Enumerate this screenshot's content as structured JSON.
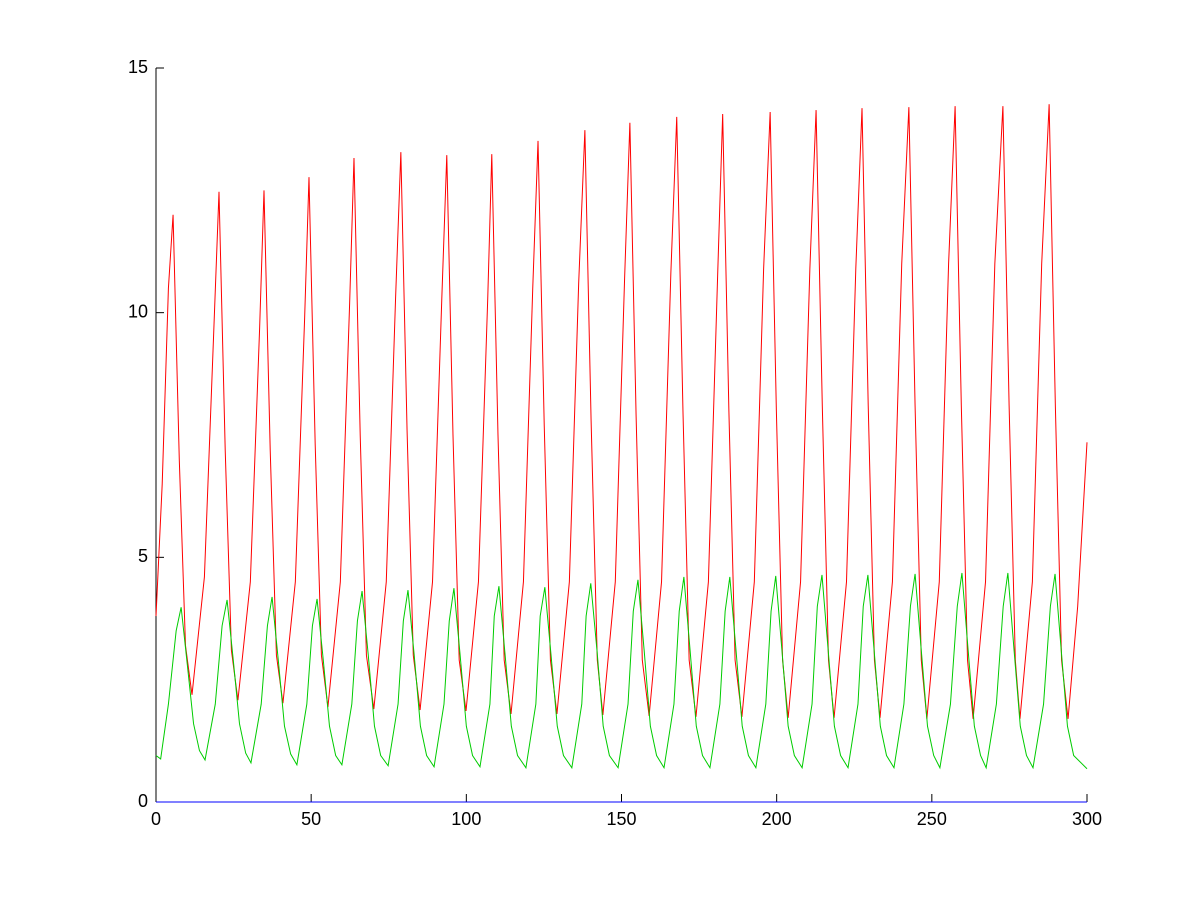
{
  "chart_data": {
    "type": "line",
    "xlim": [
      0,
      300
    ],
    "ylim": [
      0,
      15
    ],
    "xticks": [
      0,
      50,
      100,
      150,
      200,
      250,
      300
    ],
    "yticks": [
      0,
      5,
      10,
      15
    ],
    "series": [
      {
        "color": "#ff0000",
        "x": [
          0,
          2,
          4,
          5.5,
          7.5,
          9.5,
          11.6,
          15.6,
          18.6,
          20.3,
          22.3,
          24.3,
          26.4,
          30.4,
          33.4,
          34.8,
          36.8,
          38.8,
          40.9,
          44.9,
          47.9,
          49.3,
          51.3,
          53.3,
          55.4,
          59.4,
          62.4,
          63.8,
          65.8,
          67.8,
          70.2,
          74.2,
          77.2,
          78.9,
          80.9,
          82.9,
          85.1,
          89.1,
          92.1,
          93.7,
          95.7,
          97.7,
          99.9,
          103.9,
          106.9,
          108.2,
          110.2,
          112.2,
          114.4,
          118.4,
          121.4,
          123.1,
          125.1,
          127.1,
          129.2,
          133.2,
          136.2,
          138.2,
          140.2,
          142.2,
          144.0,
          148.0,
          151.0,
          152.7,
          154.7,
          156.7,
          158.9,
          162.9,
          165.9,
          167.8,
          169.8,
          171.8,
          174.0,
          178.0,
          181.0,
          182.6,
          184.6,
          186.6,
          188.8,
          192.8,
          195.8,
          197.9,
          199.9,
          201.9,
          203.7,
          207.7,
          210.7,
          212.7,
          214.7,
          216.7,
          218.5,
          222.5,
          225.5,
          227.5,
          229.5,
          231.5,
          233.3,
          237.3,
          240.3,
          242.6,
          244.6,
          246.6,
          248.4,
          252.4,
          255.4,
          257.5,
          259.5,
          261.5,
          263.3,
          267.3,
          270.3,
          272.9,
          274.9,
          276.9,
          278.4,
          282.4,
          285.4,
          287.8,
          289.8,
          291.8,
          293.9,
          297,
          300
        ],
        "values": [
          3.8,
          6.5,
          10.5,
          12.0,
          7.0,
          3.2,
          2.19,
          4.6,
          9.6,
          12.47,
          7.2,
          3.1,
          2.08,
          4.5,
          9.7,
          12.5,
          7.2,
          3.0,
          2.02,
          4.5,
          9.9,
          12.77,
          7.3,
          3.0,
          1.94,
          4.5,
          10.2,
          13.16,
          7.5,
          3.0,
          1.9,
          4.5,
          10.3,
          13.28,
          7.6,
          3.0,
          1.88,
          4.5,
          10.3,
          13.22,
          7.5,
          2.9,
          1.86,
          4.5,
          10.3,
          13.24,
          7.5,
          2.9,
          1.8,
          4.5,
          10.5,
          13.51,
          7.7,
          2.9,
          1.8,
          4.5,
          10.6,
          13.73,
          7.8,
          2.9,
          1.78,
          4.5,
          10.7,
          13.88,
          7.9,
          2.9,
          1.76,
          4.5,
          10.8,
          14.0,
          8.0,
          2.9,
          1.74,
          4.5,
          10.8,
          14.06,
          8.0,
          2.9,
          1.74,
          4.5,
          10.9,
          14.1,
          8.0,
          2.9,
          1.72,
          4.5,
          10.9,
          14.14,
          8.1,
          2.9,
          1.72,
          4.5,
          10.9,
          14.18,
          8.1,
          2.9,
          1.72,
          4.5,
          11.0,
          14.2,
          8.1,
          2.9,
          1.7,
          4.5,
          11.0,
          14.22,
          8.1,
          2.9,
          1.7,
          4.5,
          11.0,
          14.22,
          8.1,
          2.9,
          1.7,
          4.5,
          11.0,
          14.26,
          8.1,
          2.9,
          1.7,
          4.0,
          7.35
        ]
      },
      {
        "color": "#00cc00",
        "x": [
          0,
          1.5,
          4,
          6.5,
          8.1,
          10.1,
          12.1,
          14,
          15.8,
          19.1,
          21.3,
          22.9,
          24.9,
          26.9,
          28.9,
          30.6,
          33.9,
          35.9,
          37.4,
          39.4,
          41.4,
          43.4,
          45.4,
          48.6,
          50.4,
          51.9,
          53.9,
          55.9,
          57.9,
          59.9,
          63.1,
          64.9,
          66.4,
          68.4,
          70.4,
          72.4,
          74.8,
          78,
          79.7,
          81.2,
          83.2,
          85.2,
          87.2,
          89.6,
          92.8,
          94.5,
          96.0,
          98,
          100,
          102,
          104.4,
          107.6,
          109,
          110.5,
          112.5,
          114.5,
          116.5,
          119.2,
          122.4,
          123.8,
          125.3,
          127.3,
          129.3,
          131.3,
          134,
          137.2,
          138.6,
          140.1,
          142.1,
          144.1,
          146.1,
          148.9,
          152.1,
          153.8,
          155.3,
          157.3,
          159.3,
          161.3,
          163.7,
          166.9,
          168.6,
          170.1,
          172.1,
          174.1,
          176.1,
          178.5,
          181.7,
          183.4,
          184.9,
          186.9,
          188.9,
          190.9,
          193.3,
          196.5,
          198.2,
          199.7,
          201.7,
          203.7,
          205.7,
          208.2,
          211.4,
          213.1,
          214.6,
          216.6,
          218.6,
          220.6,
          223,
          226.2,
          227.9,
          229.4,
          231.4,
          233.4,
          235.4,
          237.8,
          241,
          243.1,
          244.6,
          246.6,
          248.6,
          250.6,
          252.6,
          256,
          258.2,
          259.7,
          261.7,
          263.7,
          265.7,
          267.5,
          270.8,
          273,
          274.5,
          276.5,
          278.5,
          280.5,
          282.6,
          286,
          288.2,
          289.7,
          291.7,
          293.7,
          295.7,
          300
        ],
        "values": [
          0.95,
          0.88,
          2.0,
          3.5,
          3.98,
          2.8,
          1.6,
          1.05,
          0.86,
          2.0,
          3.6,
          4.13,
          2.9,
          1.6,
          1.0,
          0.8,
          2.0,
          3.6,
          4.19,
          2.9,
          1.55,
          0.98,
          0.76,
          2.0,
          3.6,
          4.15,
          2.9,
          1.55,
          0.95,
          0.76,
          2.0,
          3.7,
          4.31,
          3.0,
          1.55,
          0.95,
          0.74,
          2.0,
          3.7,
          4.33,
          3.0,
          1.55,
          0.95,
          0.72,
          2.0,
          3.7,
          4.37,
          3.0,
          1.55,
          0.95,
          0.72,
          2.0,
          3.8,
          4.41,
          3.0,
          1.55,
          0.95,
          0.7,
          2.0,
          3.8,
          4.39,
          3.0,
          1.55,
          0.95,
          0.7,
          2.0,
          3.8,
          4.47,
          3.1,
          1.55,
          0.95,
          0.7,
          2.0,
          3.9,
          4.54,
          3.1,
          1.55,
          0.95,
          0.7,
          2.0,
          3.9,
          4.6,
          3.1,
          1.55,
          0.95,
          0.7,
          2.0,
          3.9,
          4.6,
          3.1,
          1.55,
          0.95,
          0.7,
          2.0,
          3.9,
          4.62,
          3.1,
          1.55,
          0.95,
          0.7,
          2.0,
          4.0,
          4.64,
          3.1,
          1.55,
          0.95,
          0.7,
          2.0,
          4.0,
          4.64,
          3.1,
          1.55,
          0.95,
          0.7,
          2.0,
          4.0,
          4.66,
          3.1,
          1.55,
          0.95,
          0.7,
          2.0,
          4.0,
          4.68,
          3.1,
          1.55,
          0.95,
          0.7,
          2.0,
          4.0,
          4.68,
          3.1,
          1.55,
          0.95,
          0.7,
          2.0,
          4.0,
          4.66,
          3.1,
          1.55,
          0.95,
          0.68
        ]
      },
      {
        "color": "#0000ff",
        "x": [
          0,
          300
        ],
        "values": [
          0,
          0
        ]
      }
    ]
  }
}
